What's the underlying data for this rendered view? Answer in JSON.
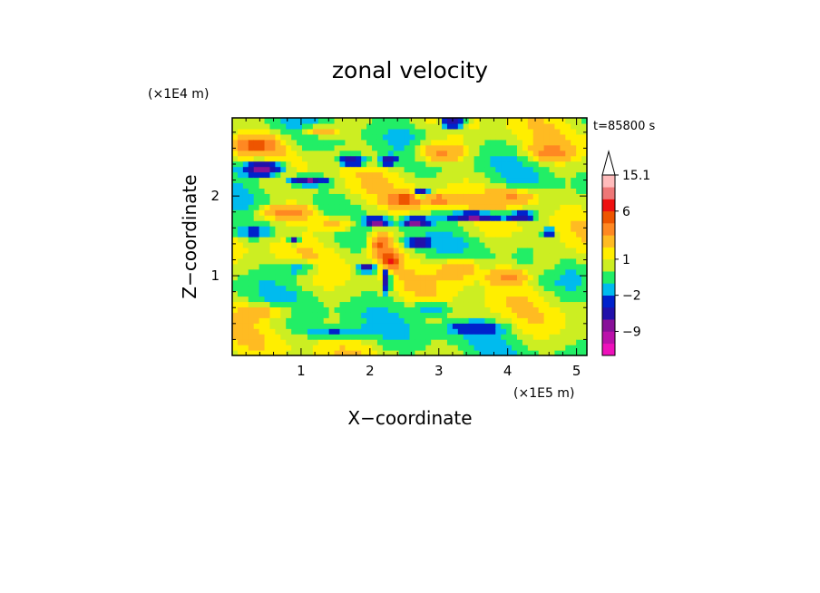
{
  "chart_data": {
    "type": "heatmap",
    "title": "zonal velocity",
    "xlabel": "X−coordinate",
    "ylabel": "Z−coordinate",
    "x_unit": "(×1E5 m)",
    "y_unit": "(×1E4 m)",
    "time_label": "t=85800 s",
    "xlim": [
      0,
      5.15
    ],
    "ylim": [
      0,
      2.98
    ],
    "x_ticks": [
      "1",
      "2",
      "3",
      "4",
      "5"
    ],
    "y_ticks": [
      "1",
      "2"
    ],
    "colorbar": {
      "labels": [
        "15.1",
        "6",
        "1",
        "−2",
        "−9"
      ],
      "levels": [
        -15,
        -12,
        -9,
        -6,
        -4,
        -2,
        -1,
        0,
        1,
        2,
        4,
        6,
        9,
        12,
        15.1
      ],
      "colors": [
        "#ee11bb",
        "#bb11aa",
        "#881199",
        "#2211aa",
        "#0022cc",
        "#00bbee",
        "#22ee66",
        "#ccee22",
        "#ffee00",
        "#ffbb22",
        "#ff8822",
        "#ee5500",
        "#ee1111",
        "#ee7777",
        "#ffbbbb"
      ],
      "extend": "max"
    },
    "grid": false,
    "legend": "right colorbar"
  }
}
